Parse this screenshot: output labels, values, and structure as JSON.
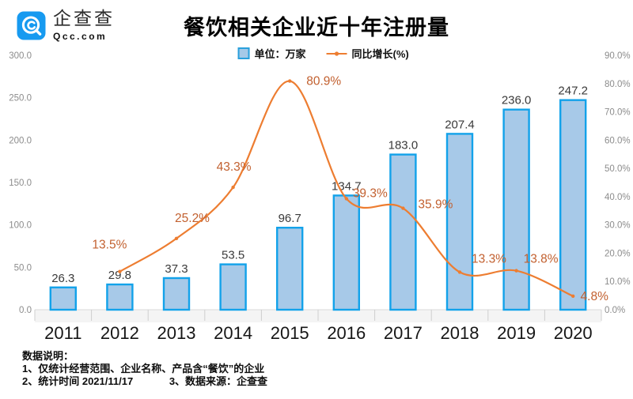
{
  "header": {
    "logo": {
      "name": "企查查",
      "domain": "Qcc.com"
    },
    "title": "餐饮相关企业近十年注册量"
  },
  "legend": {
    "bar_label": "单位：万家",
    "line_label": "同比增长(%)"
  },
  "colors": {
    "brand_blue": "#179af0",
    "bar_fill": "#a7c9e8",
    "bar_border": "#12a2ea",
    "line": "#ed7d31",
    "pct_label": "#c2602f",
    "value_label": "#3a3a3a",
    "axis_gray": "#8c8c8c",
    "year_label": "#161616"
  },
  "chart_data": {
    "type": "bar+line",
    "title": "餐饮相关企业近十年注册量",
    "categories": [
      "2011",
      "2012",
      "2013",
      "2014",
      "2015",
      "2016",
      "2017",
      "2018",
      "2019",
      "2020"
    ],
    "series": [
      {
        "name": "单位：万家",
        "type": "bar",
        "axis": "left",
        "values": [
          26.3,
          29.8,
          37.3,
          53.5,
          96.7,
          134.7,
          183.0,
          207.4,
          236.0,
          247.2
        ]
      },
      {
        "name": "同比增长(%)",
        "type": "line",
        "axis": "right",
        "values": [
          null,
          13.5,
          25.2,
          43.3,
          80.9,
          39.3,
          35.9,
          13.3,
          13.8,
          4.8
        ]
      }
    ],
    "bar_labels": [
      "26.3",
      "29.8",
      "37.3",
      "53.5",
      "96.7",
      "134.7",
      "183.0",
      "207.4",
      "236.0",
      "247.2"
    ],
    "line_labels": [
      null,
      "13.5%",
      "25.2%",
      "43.3%",
      "80.9%",
      "39.3%",
      "35.9%",
      "13.3%",
      "13.8%",
      "4.8%"
    ],
    "left_axis": {
      "min": 0,
      "max": 300,
      "ticks": [
        "300.0",
        "250.0",
        "200.0",
        "150.0",
        "100.0",
        "50.0",
        "0.0"
      ]
    },
    "right_axis": {
      "min": 0,
      "max": 90,
      "ticks": [
        "90.0%",
        "80.0%",
        "70.0%",
        "60.0%",
        "50.0%",
        "40.0%",
        "30.0%",
        "20.0%",
        "10.0%",
        "0.0%"
      ]
    },
    "legend_position": "top",
    "grid": false
  },
  "footer": {
    "heading": "数据说明：",
    "line1": "1、仅统计经营范围、企业名称、产品含“餐饮”的企业",
    "line2_left": "2、统计时间 2021/11/17",
    "line2_right": "3、数据来源：企查查"
  }
}
